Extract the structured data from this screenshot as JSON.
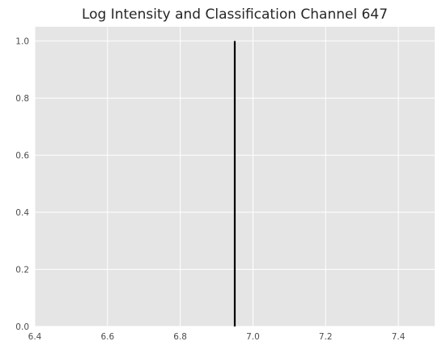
{
  "chart_data": {
    "type": "line",
    "title": "Log Intensity and Classification Channel 647",
    "xlabel": "",
    "ylabel": "",
    "xlim": [
      6.4,
      7.5
    ],
    "ylim": [
      0.0,
      1.05
    ],
    "x_ticks": [
      "6.4",
      "6.6",
      "6.8",
      "7.0",
      "7.2",
      "7.4"
    ],
    "y_ticks": [
      "0.0",
      "0.2",
      "0.4",
      "0.6",
      "0.8",
      "1.0"
    ],
    "grid": true,
    "legend": "none",
    "series": [
      {
        "color": "#000000",
        "style": "vertical-line",
        "x": [
          6.95,
          6.95
        ],
        "y": [
          0.0,
          1.0
        ]
      }
    ]
  },
  "colors": {
    "plot_background": "#e5e5e5",
    "grid": "#ffffff",
    "tick_label": "#4d4d4d",
    "title": "#262626"
  }
}
